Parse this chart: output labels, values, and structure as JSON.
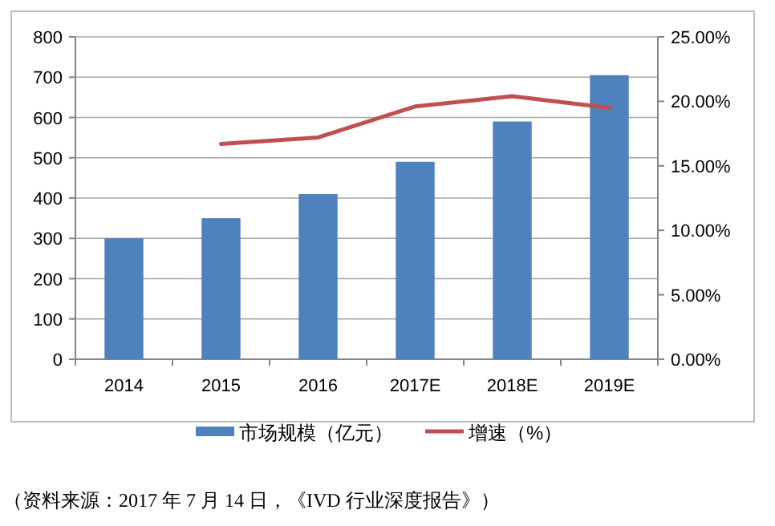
{
  "chart_data": {
    "type": "bar",
    "categories": [
      "2014",
      "2015",
      "2016",
      "2017E",
      "2018E",
      "2019E"
    ],
    "series": [
      {
        "name": "市场规模（亿元）",
        "color": "#4f81bd",
        "values": [
          300,
          350,
          410,
          490,
          590,
          705
        ]
      },
      {
        "name": "增速（%）",
        "type": "line",
        "axis": "y2",
        "color": "#c0504d",
        "values": [
          null,
          16.7,
          17.2,
          19.6,
          20.4,
          19.5
        ]
      }
    ],
    "ylim": [
      0,
      800
    ],
    "yticks": [
      0,
      100,
      200,
      300,
      400,
      500,
      600,
      700,
      800
    ],
    "y2lim": [
      0,
      25
    ],
    "y2ticks": [
      {
        "value": 0,
        "label": "0.00%"
      },
      {
        "value": 5,
        "label": "5.00%"
      },
      {
        "value": 10,
        "label": "10.00%"
      },
      {
        "value": 15,
        "label": "15.00%"
      },
      {
        "value": 20,
        "label": "20.00%"
      },
      {
        "value": 25,
        "label": "25.00%"
      }
    ],
    "grid": "y",
    "legend": "bottom",
    "annotations": [
      "（资料来源：2017 年 7 月 14 日，《IVD 行业深度报告》）"
    ]
  }
}
